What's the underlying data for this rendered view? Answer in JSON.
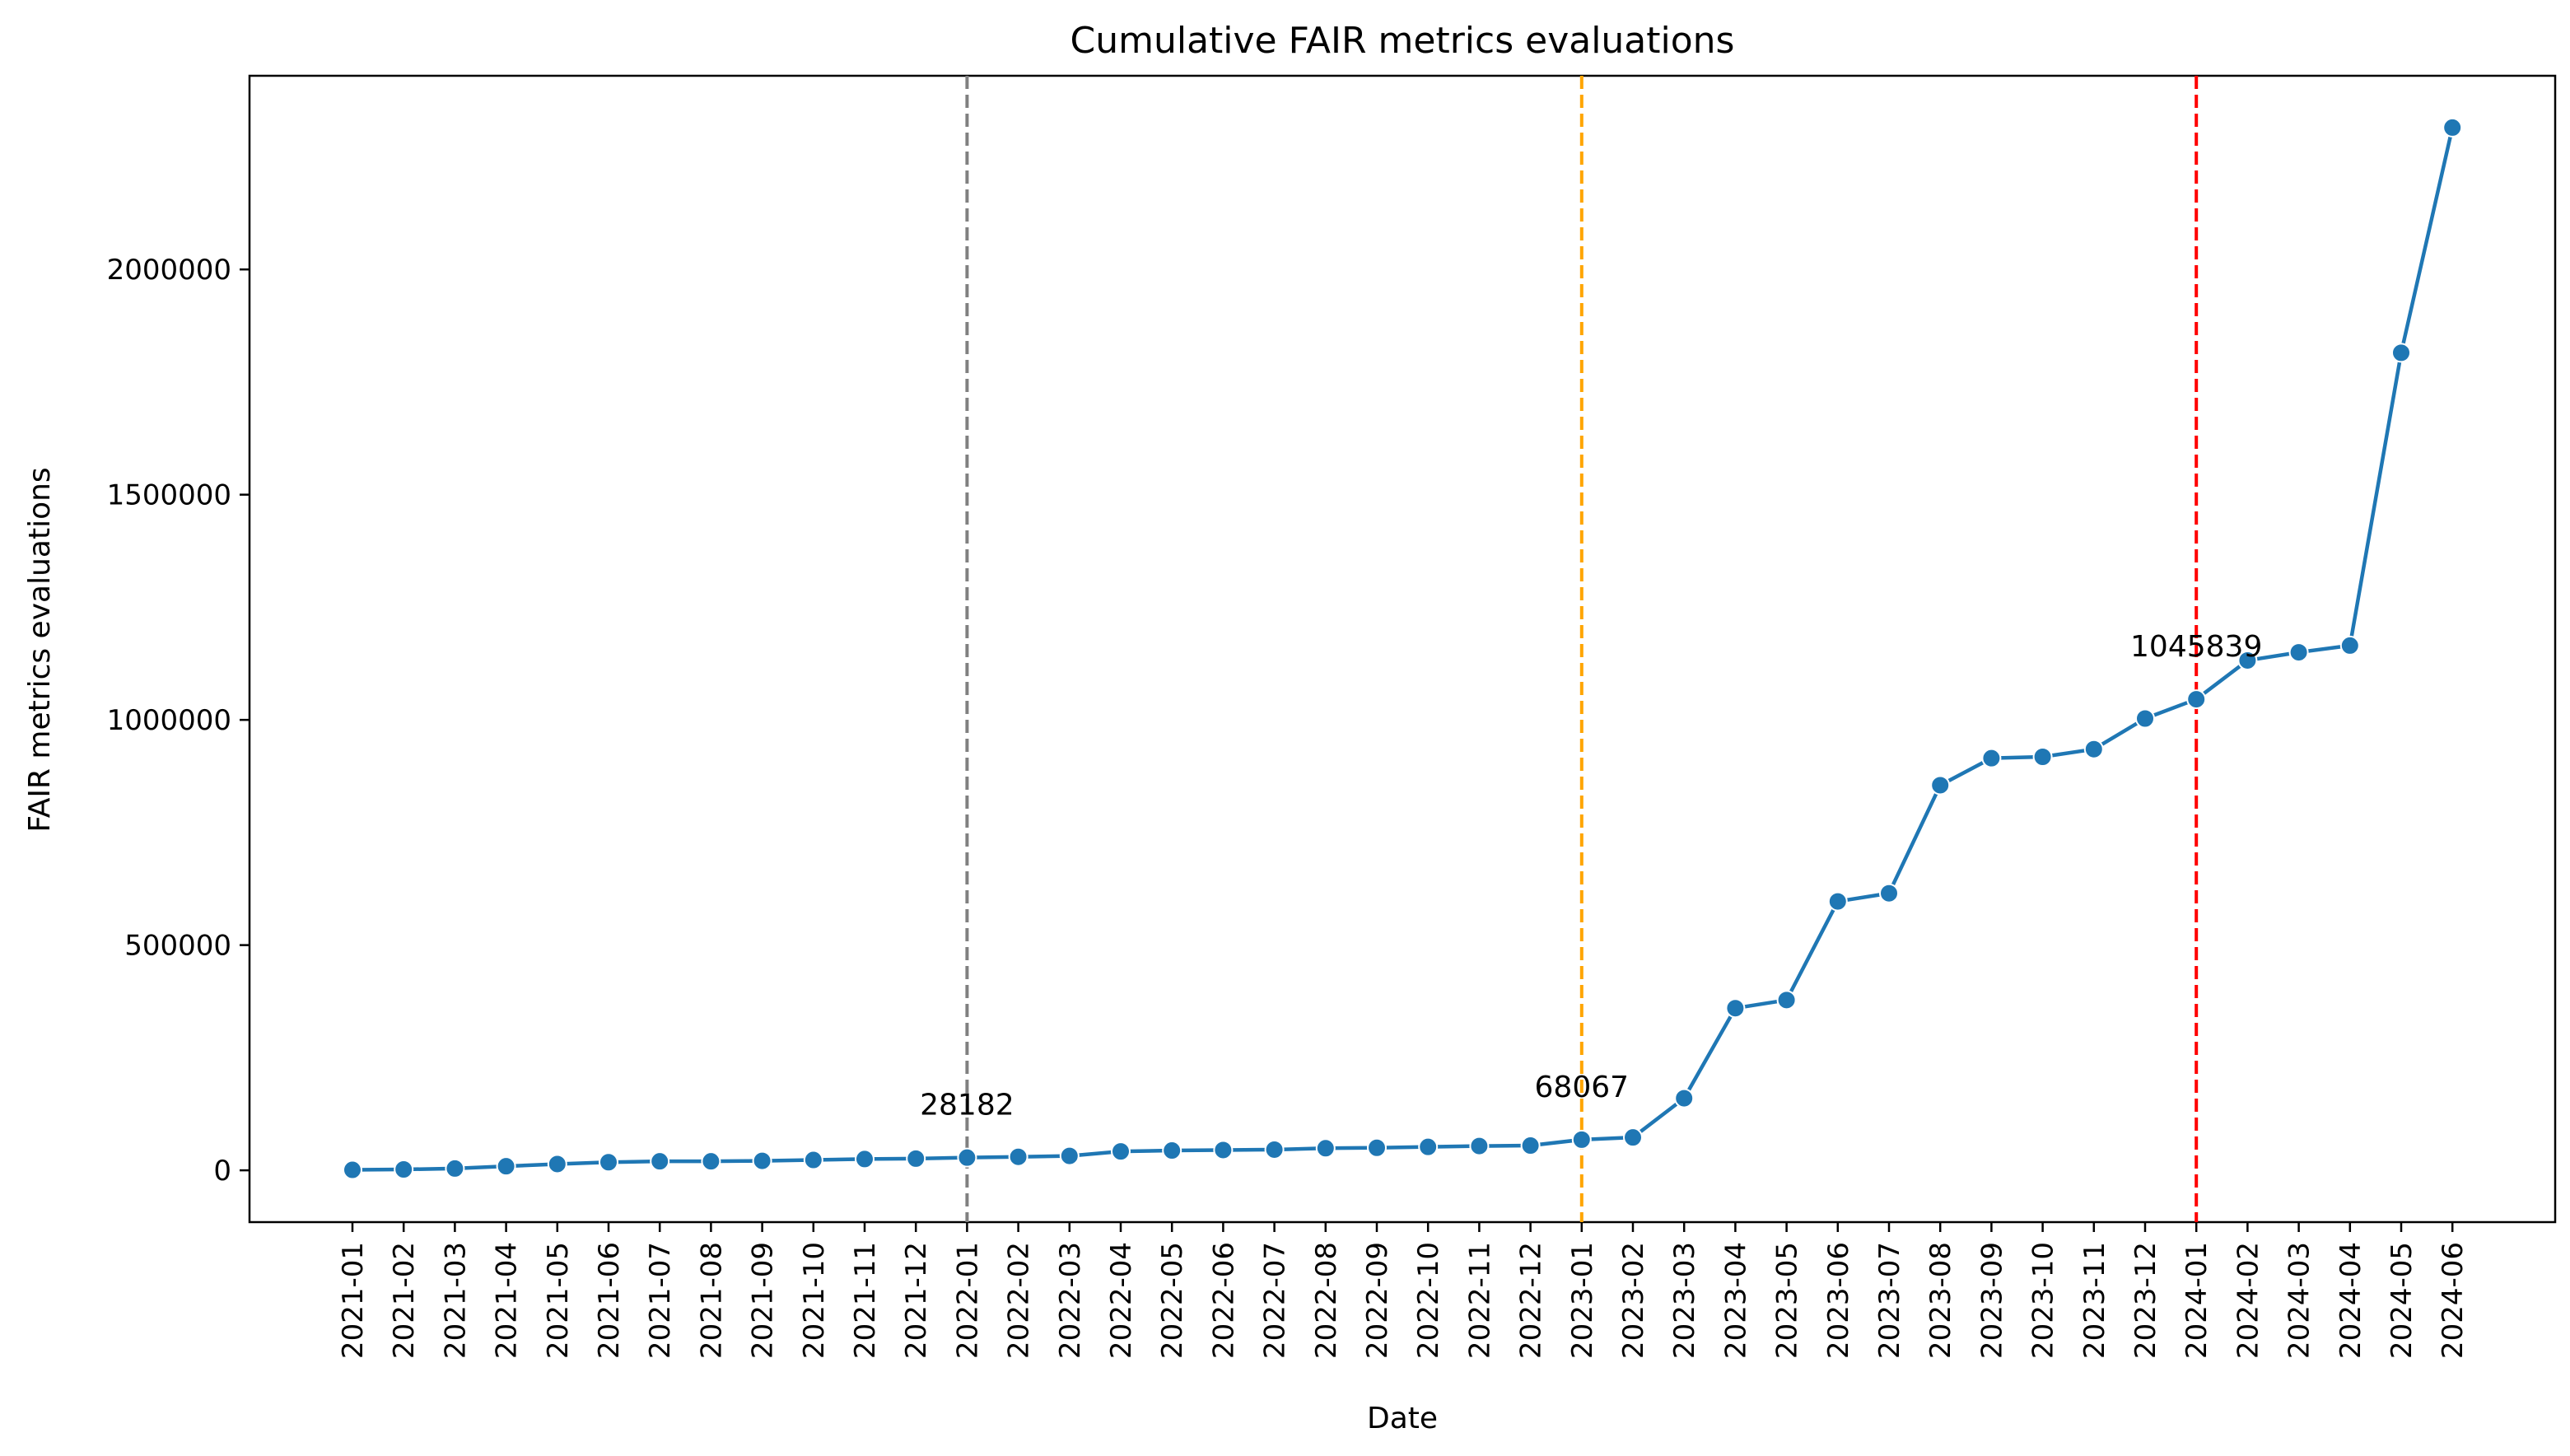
{
  "chart_data": {
    "type": "line",
    "title": "Cumulative FAIR metrics evaluations",
    "xlabel": "Date",
    "ylabel": "FAIR metrics evaluations",
    "x": [
      "2021-01",
      "2021-02",
      "2021-03",
      "2021-04",
      "2021-05",
      "2021-06",
      "2021-07",
      "2021-08",
      "2021-09",
      "2021-10",
      "2021-11",
      "2021-12",
      "2022-01",
      "2022-02",
      "2022-03",
      "2022-04",
      "2022-05",
      "2022-06",
      "2022-07",
      "2022-08",
      "2022-09",
      "2022-10",
      "2022-11",
      "2022-12",
      "2023-01",
      "2023-02",
      "2023-03",
      "2023-04",
      "2023-05",
      "2023-06",
      "2023-07",
      "2023-08",
      "2023-09",
      "2023-10",
      "2023-11",
      "2023-12",
      "2024-01",
      "2024-02",
      "2024-03",
      "2024-04",
      "2024-05",
      "2024-06"
    ],
    "series": [
      {
        "color": "#1f77b4",
        "marker": "circle",
        "values": [
          1000,
          2000,
          4000,
          9000,
          14000,
          18000,
          20000,
          20000,
          21000,
          23000,
          25000,
          26000,
          28182,
          30000,
          32000,
          42000,
          44000,
          45000,
          46000,
          49000,
          50000,
          52000,
          54000,
          55000,
          68067,
          73000,
          160000,
          360000,
          378000,
          597000,
          615000,
          855000,
          915000,
          918000,
          935000,
          1003000,
          1045839,
          1132000,
          1150000,
          1165000,
          1815000,
          2315000
        ]
      }
    ],
    "yticks": [
      0,
      500000,
      1000000,
      1500000,
      2000000
    ],
    "ytick_labels": [
      "0",
      "500000",
      "1000000",
      "1500000",
      "2000000"
    ],
    "ylim": [
      -115000,
      2430000
    ],
    "grid": false,
    "vlines": [
      {
        "x": "2022-01",
        "color": "#808080",
        "style": "dashed"
      },
      {
        "x": "2023-01",
        "color": "#ffa500",
        "style": "dashed"
      },
      {
        "x": "2024-01",
        "color": "#ff0000",
        "style": "dashed"
      }
    ],
    "annotations": [
      {
        "x": "2022-01",
        "y": 28182,
        "text": "28182"
      },
      {
        "x": "2023-01",
        "y": 68067,
        "text": "68067"
      },
      {
        "x": "2024-01",
        "y": 1045839,
        "text": "1045839"
      }
    ]
  }
}
